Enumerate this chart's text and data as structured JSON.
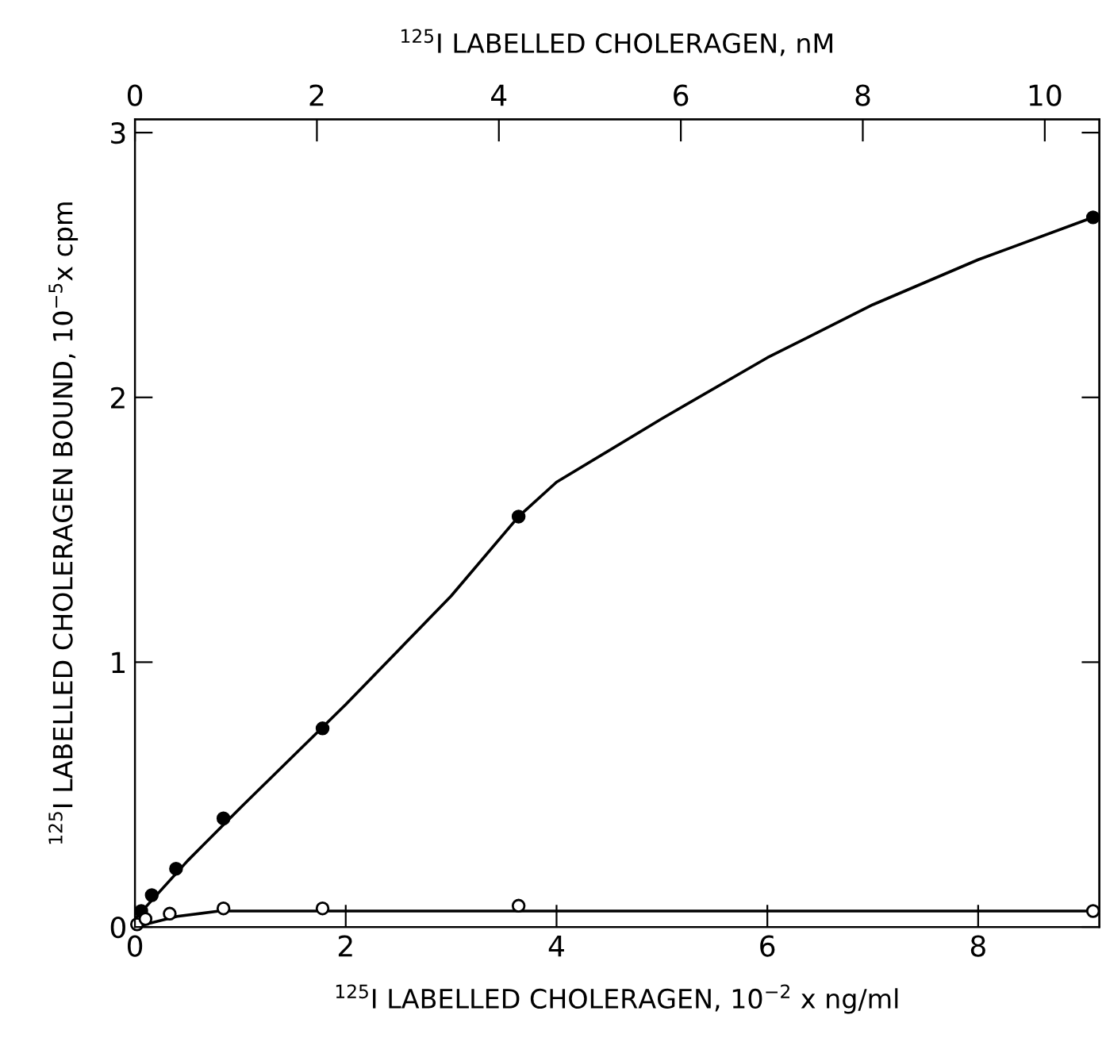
{
  "chart_data": {
    "type": "scatter",
    "xlabel": "$^{125}$I LABELLED CHOLERAGEN, 10$^{−2}$ x ng/ml",
    "ylabel": "$^{125}$I LABELLED CHOLERAGEN BOUND, 10$^{−5}$x cpm",
    "x2label": "$^{125}$I LABELLED CHOLERAGEN, nM",
    "xlim": [
      0,
      9.15
    ],
    "xticks": [
      0,
      2,
      4,
      6,
      8
    ],
    "x2lim": [
      0,
      10.6
    ],
    "x2ticks": [
      0,
      2,
      4,
      6,
      8,
      10
    ],
    "ylim": [
      0,
      3.05
    ],
    "yticks": [
      0,
      1,
      2,
      3
    ],
    "grid": false,
    "legend": false,
    "marker": "circle",
    "series": [
      {
        "type": "line",
        "color": "#000000",
        "x": [
          0,
          0.5,
          1,
          2,
          3,
          3.64,
          4,
          5,
          6,
          7,
          8,
          9.09
        ],
        "values": [
          0.03,
          0.25,
          0.45,
          0.84,
          1.25,
          1.55,
          1.68,
          1.92,
          2.15,
          2.35,
          2.52,
          2.68
        ],
        "marker": "none"
      },
      {
        "type": "line",
        "color": "#000000",
        "x": [
          0,
          0.4,
          0.8,
          2,
          4,
          9.09
        ],
        "values": [
          0.0,
          0.04,
          0.06,
          0.06,
          0.06,
          0.06
        ],
        "marker": "none"
      },
      {
        "color": "#000000",
        "x": [
          0.06,
          0.16,
          0.39,
          0.84,
          1.78,
          3.64,
          9.09
        ],
        "values": [
          0.06,
          0.12,
          0.22,
          0.41,
          0.75,
          1.55,
          2.68
        ]
      },
      {
        "color": "#ffffff",
        "x": [
          0.02,
          0.1,
          0.33,
          0.84,
          1.78,
          3.64,
          9.09
        ],
        "values": [
          0.01,
          0.03,
          0.05,
          0.07,
          0.07,
          0.08,
          0.06
        ]
      }
    ]
  }
}
